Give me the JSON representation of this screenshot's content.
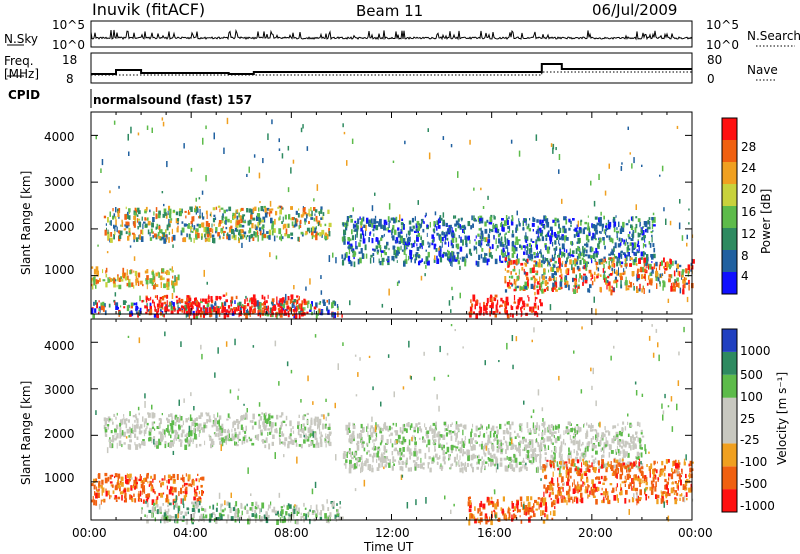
{
  "header": {
    "station": "Inuvik (fitACF)",
    "beam": "Beam 11",
    "date": "06/Jul/2009"
  },
  "nsky_panel": {
    "label": "N.Sky",
    "left_ticks": [
      "10^5",
      "10^0"
    ],
    "right_ticks": [
      "10^5",
      "10^0"
    ],
    "right_label": "N.Search"
  },
  "freq_panel": {
    "label": "Freq.",
    "unit": "[MHz]",
    "left_ticks": [
      "18",
      "8"
    ],
    "right_ticks": [
      "80",
      "0"
    ],
    "right_label": "Nave",
    "cpid_label": "CPID",
    "cpid_text": "normalsound (fast) 157"
  },
  "colors": {
    "power_scale": [
      "#1010ff",
      "#2060a0",
      "#2e8a60",
      "#5dbb4a",
      "#c8d23c",
      "#f0a020",
      "#f06010",
      "#ff1010"
    ],
    "velocity_scale": [
      "#2040c0",
      "#2e8a60",
      "#5dbb4a",
      "#c8c8c0",
      "#c8c8c0",
      "#f0a020",
      "#f06010",
      "#ff1010"
    ]
  },
  "chart_data": [
    {
      "type": "heatmap",
      "title": "",
      "xlabel": "",
      "ylabel": "Slant Range [km]",
      "xlim": [
        0,
        24
      ],
      "ylim": [
        180,
        4500
      ],
      "x_ticks": [
        "00:00",
        "04:00",
        "08:00",
        "12:00",
        "16:00",
        "20:00",
        "00:00"
      ],
      "y_ticks": [
        "1000",
        "2000",
        "3000",
        "4000"
      ],
      "colorbar": {
        "label": "Power [dB]",
        "ticks": [
          "4",
          "8",
          "12",
          "16",
          "20",
          "24",
          "28"
        ]
      },
      "echo_regions": [
        {
          "t_start": 0.0,
          "t_end": 3.5,
          "r_min": 800,
          "r_max": 1200,
          "level": "yellow-orange"
        },
        {
          "t_start": 0.0,
          "t_end": 10.0,
          "r_min": 180,
          "r_max": 500,
          "level": "mixed"
        },
        {
          "t_start": 2.0,
          "t_end": 8.5,
          "r_min": 180,
          "r_max": 600,
          "level": "red"
        },
        {
          "t_start": 0.5,
          "t_end": 9.5,
          "r_min": 1800,
          "r_max": 2500,
          "level": "orange-green"
        },
        {
          "t_start": 10.0,
          "t_end": 22.5,
          "r_min": 1300,
          "r_max": 2300,
          "level": "blue-green"
        },
        {
          "t_start": 16.5,
          "t_end": 24.0,
          "r_min": 700,
          "r_max": 1400,
          "level": "orange-red"
        },
        {
          "t_start": 15.0,
          "t_end": 18.0,
          "r_min": 180,
          "r_max": 600,
          "level": "red"
        }
      ]
    },
    {
      "type": "heatmap",
      "title": "",
      "xlabel": "Time UT",
      "ylabel": "Slant Range [km]",
      "xlim": [
        0,
        24
      ],
      "ylim": [
        180,
        4500
      ],
      "x_ticks": [
        "00:00",
        "04:00",
        "08:00",
        "12:00",
        "16:00",
        "20:00",
        "00:00"
      ],
      "y_ticks": [
        "1000",
        "2000",
        "3000",
        "4000"
      ],
      "colorbar": {
        "label": "Velocity [m s⁻¹]",
        "ticks": [
          "1000",
          "500",
          "100",
          "25",
          "-25",
          "-100",
          "-500",
          "-1000"
        ]
      },
      "echo_regions": [
        {
          "t_start": 0.5,
          "t_end": 9.5,
          "r_min": 1800,
          "r_max": 2500,
          "level": "grey"
        },
        {
          "t_start": 0.0,
          "t_end": 4.5,
          "r_min": 600,
          "r_max": 1200,
          "level": "orange"
        },
        {
          "t_start": 2.0,
          "t_end": 10.0,
          "r_min": 180,
          "r_max": 600,
          "level": "grey-green"
        },
        {
          "t_start": 10.0,
          "t_end": 22.0,
          "r_min": 1300,
          "r_max": 2300,
          "level": "grey"
        },
        {
          "t_start": 18.0,
          "t_end": 24.0,
          "r_min": 600,
          "r_max": 1500,
          "level": "orange"
        },
        {
          "t_start": 15.0,
          "t_end": 18.5,
          "r_min": 180,
          "r_max": 700,
          "level": "orange"
        }
      ]
    }
  ]
}
